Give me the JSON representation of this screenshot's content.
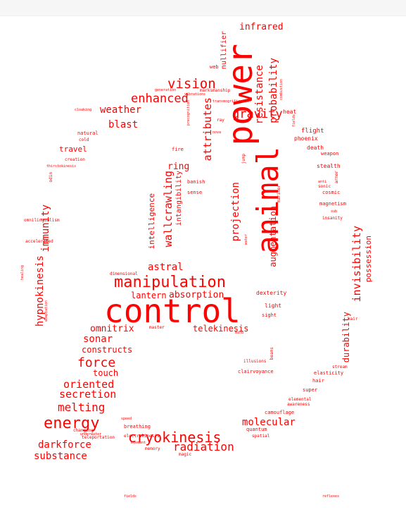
{
  "colors": {
    "word": "#ff0000",
    "background": "#ffffff"
  },
  "words": [
    "control",
    "power",
    "animal",
    "manipulation",
    "energy",
    "cryokinesis",
    "vision",
    "enhanced",
    "weather",
    "gravity",
    "attributes",
    "resistance",
    "probability",
    "infrared",
    "nullifier",
    "blast",
    "ring",
    "travel",
    "projection",
    "augmentation",
    "invisibility",
    "possession",
    "wallcrawling",
    "intelligence",
    "intangibility",
    "astral",
    "absorption",
    "lantern",
    "omnitrix",
    "telekinesis",
    "sonar",
    "constructs",
    "force",
    "touch",
    "oriented",
    "secretion",
    "melting",
    "molecular",
    "radiation",
    "darkforce",
    "substance",
    "hypnokinesis",
    "immunity",
    "durability",
    "flight",
    "phoenix",
    "death",
    "weapon",
    "stealth",
    "cosmic",
    "magnetism",
    "insanity",
    "heat",
    "fire",
    "banish",
    "sense",
    "mariner",
    "jump",
    "elasticity",
    "hair",
    "super",
    "elemental",
    "awareness",
    "camouflage",
    "clairvoyance",
    "illusions",
    "beams",
    "dexterity",
    "light",
    "sight",
    "mind",
    "quantum",
    "spatial",
    "breathing",
    "electrokinesis",
    "memory",
    "magic",
    "changing",
    "teleportation",
    "speed",
    "underwater",
    "master",
    "dimensional",
    "accelerated",
    "healing",
    "adaptation",
    "omnilingualism",
    "odin",
    "creation",
    "cold",
    "natural",
    "cloaking",
    "thirstokinesis",
    "marksmanship",
    "generation",
    "precognition",
    "transmogrification",
    "web",
    "ray",
    "nova",
    "hair",
    "stream",
    "sonic",
    "armor",
    "sub",
    "anti",
    "fields",
    "reflexes",
    "element",
    "water",
    "combustion",
    "vibrations",
    "fields",
    "night"
  ]
}
